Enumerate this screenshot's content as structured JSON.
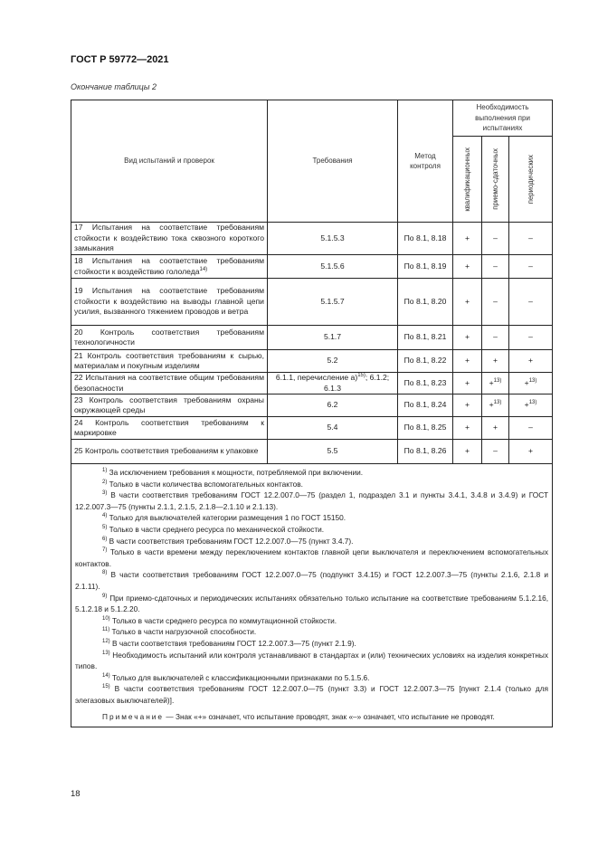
{
  "header": {
    "doc_title": "ГОСТ Р 59772—2021",
    "caption": "Окончание таблицы 2"
  },
  "table": {
    "columns": {
      "test_type": "Вид испытаний и проверок",
      "requirements": "Требования",
      "method": "Метод контроля",
      "necessity": "Необходимость выполнения при испытаниях",
      "qualification": "квалификационных",
      "acceptance": "приемо-сдаточных",
      "periodic": "периодических"
    },
    "rows": [
      {
        "test": "17 Испытания на соответствие требованиям стойкости к воздействию тока сквозного короткого замыкания",
        "test_sup": "",
        "req": "5.1.5.3",
        "req_sup": "",
        "req2": "",
        "method": "По 8.1, 8.18",
        "q": "+",
        "a": "–",
        "a_sup": "",
        "p": "–",
        "p_sup": ""
      },
      {
        "test": "18 Испытания на соответствие требованиям стойкости к воздействию гололеда",
        "test_sup": "14)",
        "req": "5.1.5.6",
        "req_sup": "",
        "req2": "",
        "method": "По 8.1, 8.19",
        "q": "+",
        "a": "–",
        "a_sup": "",
        "p": "–",
        "p_sup": ""
      },
      {
        "test": "19 Испытания на соответствие требованиям стойкости к воздействию на выводы главной цепи усилия, вызванного тяжением проводов и ветра",
        "test_sup": "",
        "req": "5.1.5.7",
        "req_sup": "",
        "req2": "",
        "method": "По 8.1, 8.20",
        "q": "+",
        "a": "–",
        "a_sup": "",
        "p": "–",
        "p_sup": ""
      },
      {
        "test": "20 Контроль соответствия требованиям технологичности",
        "test_sup": "",
        "req": "5.1.7",
        "req_sup": "",
        "req2": "",
        "method": "По 8.1, 8.21",
        "q": "+",
        "a": "–",
        "a_sup": "",
        "p": "–",
        "p_sup": ""
      },
      {
        "test": "21 Контроль соответствия требованиям к сырью, материалам и покупным изделиям",
        "test_sup": "",
        "req": "5.2",
        "req_sup": "",
        "req2": "",
        "method": "По 8.1, 8.22",
        "q": "+",
        "a": "+",
        "a_sup": "",
        "p": "+",
        "p_sup": ""
      },
      {
        "test": "22 Испытания на соответствие общим требованиям безопасности",
        "test_sup": "",
        "req": "6.1.1, перечисление а)",
        "req_sup": "15)",
        "req2": "; 6.1.2; 6.1.3",
        "method": "По 8.1, 8.23",
        "q": "+",
        "a": "+",
        "a_sup": "13)",
        "p": "+",
        "p_sup": "13)"
      },
      {
        "test": "23 Контроль соответствия требованиям охраны окружающей среды",
        "test_sup": "",
        "req": "6.2",
        "req_sup": "",
        "req2": "",
        "method": "По 8.1, 8.24",
        "q": "+",
        "a": "+",
        "a_sup": "13)",
        "p": "+",
        "p_sup": "13)"
      },
      {
        "test": "24 Контроль соответствия требованиям к маркировке",
        "test_sup": "",
        "req": "5.4",
        "req_sup": "",
        "req2": "",
        "method": "По 8.1, 8.25",
        "q": "+",
        "a": "+",
        "a_sup": "",
        "p": "–",
        "p_sup": ""
      },
      {
        "test": "25 Контроль соответствия требованиям к упаковке",
        "test_sup": "",
        "req": "5.5",
        "req_sup": "",
        "req2": "",
        "method": "По 8.1, 8.26",
        "q": "+",
        "a": "–",
        "a_sup": "",
        "p": "+",
        "p_sup": ""
      }
    ],
    "footnotes": [
      {
        "n": "1)",
        "text": "За исключением требования к мощности, потребляемой при включении."
      },
      {
        "n": "2)",
        "text": "Только в части количества вспомогательных контактов."
      },
      {
        "n": "3)",
        "text": "В части соответствия требованиям ГОСТ 12.2.007.0—75 (раздел 1, подраздел 3.1 и пункты 3.4.1, 3.4.8 и 3.4.9) и ГОСТ 12.2.007.3—75 (пункты 2.1.1, 2.1.5, 2.1.8—2.1.10 и 2.1.13)."
      },
      {
        "n": "4)",
        "text": "Только для выключателей категории размещения 1 по ГОСТ 15150."
      },
      {
        "n": "5)",
        "text": "Только в части среднего ресурса по механической стойкости."
      },
      {
        "n": "6)",
        "text": "В части соответствия требованиям ГОСТ 12.2.007.0—75 (пункт 3.4.7)."
      },
      {
        "n": "7)",
        "text": "Только в части времени между переключением контактов главной цепи выключателя и переключением вспомогательных контактов."
      },
      {
        "n": "8)",
        "text": "В части соответствия требованиям ГОСТ 12.2.007.0—75 (подпункт 3.4.15) и ГОСТ 12.2.007.3—75 (пункты 2.1.6, 2.1.8 и 2.1.11)."
      },
      {
        "n": "9)",
        "text": "При приемо-сдаточных и периодических испытаниях обязательно только испытание на соответствие требованиям 5.1.2.16, 5.1.2.18 и 5.1.2.20."
      },
      {
        "n": "10)",
        "text": "Только в части среднего ресурса по коммутационной стойкости."
      },
      {
        "n": "11)",
        "text": "Только в части нагрузочной способности."
      },
      {
        "n": "12)",
        "text": "В части соответствия требованиям ГОСТ 12.2.007.3—75 (пункт 2.1.9)."
      },
      {
        "n": "13)",
        "text": "Необходимость испытаний или контроля устанавливают в стандартах и (или) технических условиях на изделия конкретных типов."
      },
      {
        "n": "14)",
        "text": "Только для выключателей с классификационными признаками по 5.1.5.6."
      },
      {
        "n": "15)",
        "text": "В части соответствия требованиям ГОСТ 12.2.007.0—75 (пункт 3.3) и ГОСТ 12.2.007.3—75 [пункт 2.1.4 (только для элегазовых выключателей)]."
      }
    ],
    "note_label": "Примечание",
    "note_text": " — Знак «+» означает, что испытание проводят, знак «–» означает, что испытание не проводят."
  },
  "footer": {
    "page_number": "18"
  }
}
